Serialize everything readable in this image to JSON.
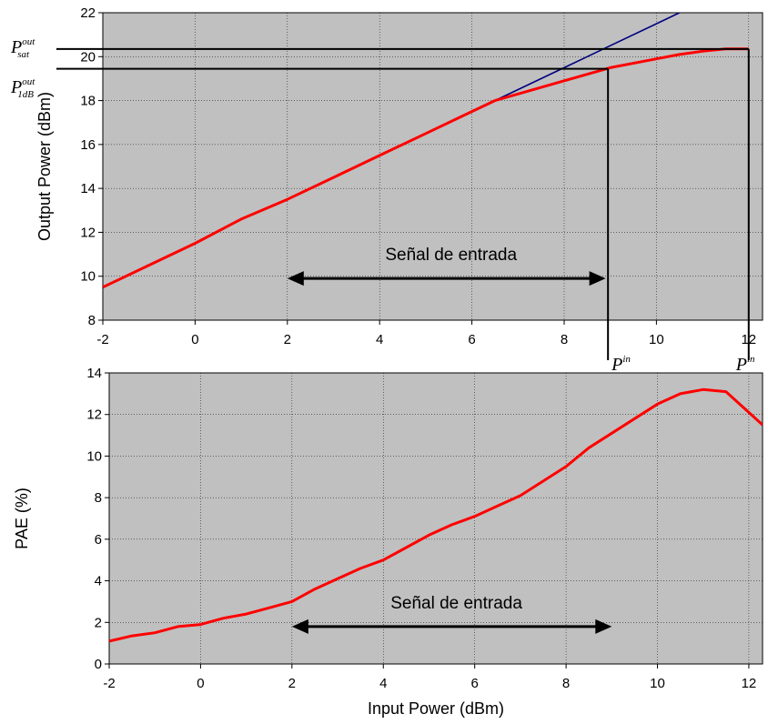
{
  "chart_data": [
    {
      "type": "line",
      "title": "",
      "xlabel": "",
      "ylabel": "Output Power (dBm)",
      "xlim": [
        -2,
        12.3
      ],
      "ylim": [
        8,
        22
      ],
      "xticks": [
        -2,
        0,
        2,
        4,
        6,
        8,
        10,
        12
      ],
      "yticks": [
        8,
        10,
        12,
        14,
        16,
        18,
        20,
        22
      ],
      "grid": true,
      "background": "#c0c0c0",
      "series": [
        {
          "color": "#ff0000",
          "x": [
            -2,
            -1,
            0,
            1,
            2,
            3,
            4,
            5,
            6,
            6.5,
            7,
            8,
            9,
            10,
            10.5,
            11,
            11.5,
            12
          ],
          "y": [
            9.5,
            10.5,
            11.5,
            12.6,
            13.5,
            14.5,
            15.5,
            16.5,
            17.5,
            18.0,
            18.3,
            18.9,
            19.5,
            19.9,
            20.1,
            20.25,
            20.35,
            20.35
          ]
        },
        {
          "color": "#000080",
          "x": [
            6.5,
            7,
            8,
            9,
            10,
            10.5
          ],
          "y": [
            18.0,
            18.5,
            19.5,
            20.5,
            21.5,
            22.0
          ]
        }
      ],
      "annotations": {
        "psat_symbol": "P",
        "psat_sup": "out",
        "psat_sub": "sat",
        "psat_value": 20.35,
        "p1db_symbol": "P",
        "p1db_sup": "out",
        "p1db_sub": "1dB",
        "p1db_value": 19.45,
        "pin1_symbol": "P",
        "pin1_sup": "in",
        "pin1_x": 8.95,
        "pin2_symbol": "P",
        "pin2_sup": "in",
        "pin2_x": 12.0,
        "arrow_text": "Señal de entrada",
        "arrow_from": 2,
        "arrow_to": 8.9,
        "arrow_y": 9.9
      }
    },
    {
      "type": "line",
      "title": "",
      "xlabel": "Input Power (dBm)",
      "ylabel": "PAE (%)",
      "xlim": [
        -2,
        12.3
      ],
      "ylim": [
        0,
        14
      ],
      "xticks": [
        -2,
        0,
        2,
        4,
        6,
        8,
        10,
        12
      ],
      "yticks": [
        0,
        2,
        4,
        6,
        8,
        10,
        12,
        14
      ],
      "grid": true,
      "background": "#c0c0c0",
      "series": [
        {
          "color": "#ff0000",
          "x": [
            -2,
            -1.5,
            -1,
            -0.5,
            0,
            0.5,
            1,
            1.5,
            2,
            2.5,
            3,
            3.5,
            4,
            4.5,
            5,
            5.5,
            6,
            6.5,
            7,
            7.5,
            8,
            8.5,
            9,
            9.5,
            10,
            10.5,
            11,
            11.5,
            12,
            12.3
          ],
          "y": [
            1.1,
            1.35,
            1.5,
            1.8,
            1.9,
            2.2,
            2.4,
            2.7,
            3.0,
            3.6,
            4.1,
            4.6,
            5.0,
            5.6,
            6.2,
            6.7,
            7.1,
            7.6,
            8.1,
            8.8,
            9.5,
            10.4,
            11.1,
            11.8,
            12.5,
            13.0,
            13.2,
            13.1,
            12.1,
            11.5
          ]
        }
      ],
      "annotations": {
        "arrow_text": "Señal de entrada",
        "arrow_from": 2,
        "arrow_to": 9,
        "arrow_y": 1.8
      }
    }
  ]
}
